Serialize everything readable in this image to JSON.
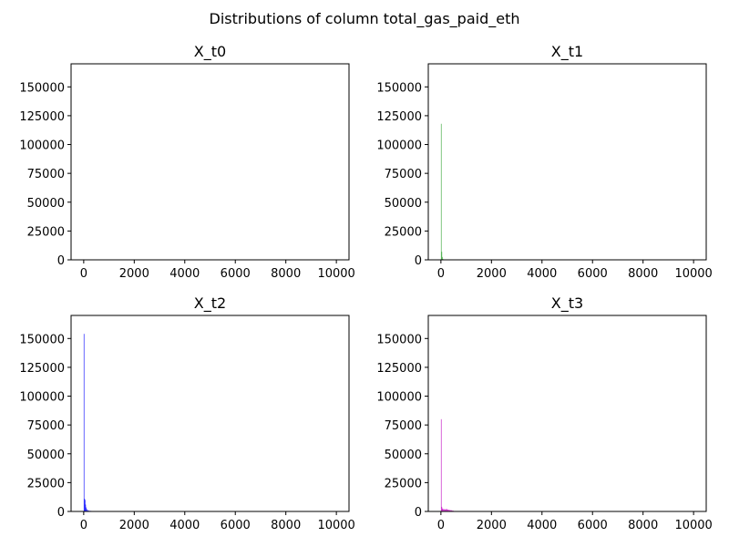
{
  "figure": {
    "title": "Distributions of column total_gas_paid_eth"
  },
  "chart_data": [
    {
      "type": "histogram",
      "title": "X_t0",
      "color": "#ff0000",
      "xlim": [
        -500,
        10500
      ],
      "ylim": [
        0,
        170000
      ],
      "xticks": [
        0,
        2000,
        4000,
        6000,
        8000,
        10000
      ],
      "yticks": [
        0,
        25000,
        50000,
        75000,
        100000,
        125000,
        150000
      ],
      "bins": []
    },
    {
      "type": "histogram",
      "title": "X_t1",
      "color": "#2ca02c",
      "xlim": [
        -500,
        10500
      ],
      "ylim": [
        0,
        170000
      ],
      "xticks": [
        0,
        2000,
        4000,
        6000,
        8000,
        10000
      ],
      "yticks": [
        0,
        25000,
        50000,
        75000,
        100000,
        125000,
        150000
      ],
      "bins": [
        {
          "x0": 0,
          "x1": 20,
          "count": 118000
        },
        {
          "x0": 20,
          "x1": 40,
          "count": 7000
        },
        {
          "x0": 40,
          "x1": 60,
          "count": 2500
        },
        {
          "x0": 60,
          "x1": 80,
          "count": 900
        },
        {
          "x0": 80,
          "x1": 120,
          "count": 400
        }
      ]
    },
    {
      "type": "histogram",
      "title": "X_t2",
      "color": "#0000ff",
      "xlim": [
        -500,
        10500
      ],
      "ylim": [
        0,
        170000
      ],
      "xticks": [
        0,
        2000,
        4000,
        6000,
        8000,
        10000
      ],
      "yticks": [
        0,
        25000,
        50000,
        75000,
        100000,
        125000,
        150000
      ],
      "bins": [
        {
          "x0": 0,
          "x1": 20,
          "count": 154000
        },
        {
          "x0": 20,
          "x1": 40,
          "count": 11000
        },
        {
          "x0": 40,
          "x1": 60,
          "count": 10000
        },
        {
          "x0": 60,
          "x1": 80,
          "count": 6000
        },
        {
          "x0": 80,
          "x1": 100,
          "count": 3500
        },
        {
          "x0": 100,
          "x1": 140,
          "count": 2000
        },
        {
          "x0": 140,
          "x1": 200,
          "count": 1000
        },
        {
          "x0": 200,
          "x1": 300,
          "count": 500
        },
        {
          "x0": 300,
          "x1": 400,
          "count": 350
        },
        {
          "x0": 400,
          "x1": 500,
          "count": 250
        },
        {
          "x0": 500,
          "x1": 600,
          "count": 200
        }
      ]
    },
    {
      "type": "histogram",
      "title": "X_t3",
      "color": "#bf00bf",
      "xlim": [
        -500,
        10500
      ],
      "ylim": [
        0,
        170000
      ],
      "xticks": [
        0,
        2000,
        4000,
        6000,
        8000,
        10000
      ],
      "yticks": [
        0,
        25000,
        50000,
        75000,
        100000,
        125000,
        150000
      ],
      "bins": [
        {
          "x0": 0,
          "x1": 20,
          "count": 80000
        },
        {
          "x0": 20,
          "x1": 40,
          "count": 4000
        },
        {
          "x0": 40,
          "x1": 80,
          "count": 2500
        },
        {
          "x0": 80,
          "x1": 140,
          "count": 2000
        },
        {
          "x0": 140,
          "x1": 200,
          "count": 1800
        },
        {
          "x0": 200,
          "x1": 260,
          "count": 2000
        },
        {
          "x0": 260,
          "x1": 320,
          "count": 1500
        },
        {
          "x0": 320,
          "x1": 380,
          "count": 1200
        },
        {
          "x0": 380,
          "x1": 440,
          "count": 1000
        },
        {
          "x0": 440,
          "x1": 500,
          "count": 700
        },
        {
          "x0": 500,
          "x1": 560,
          "count": 400
        }
      ]
    }
  ]
}
